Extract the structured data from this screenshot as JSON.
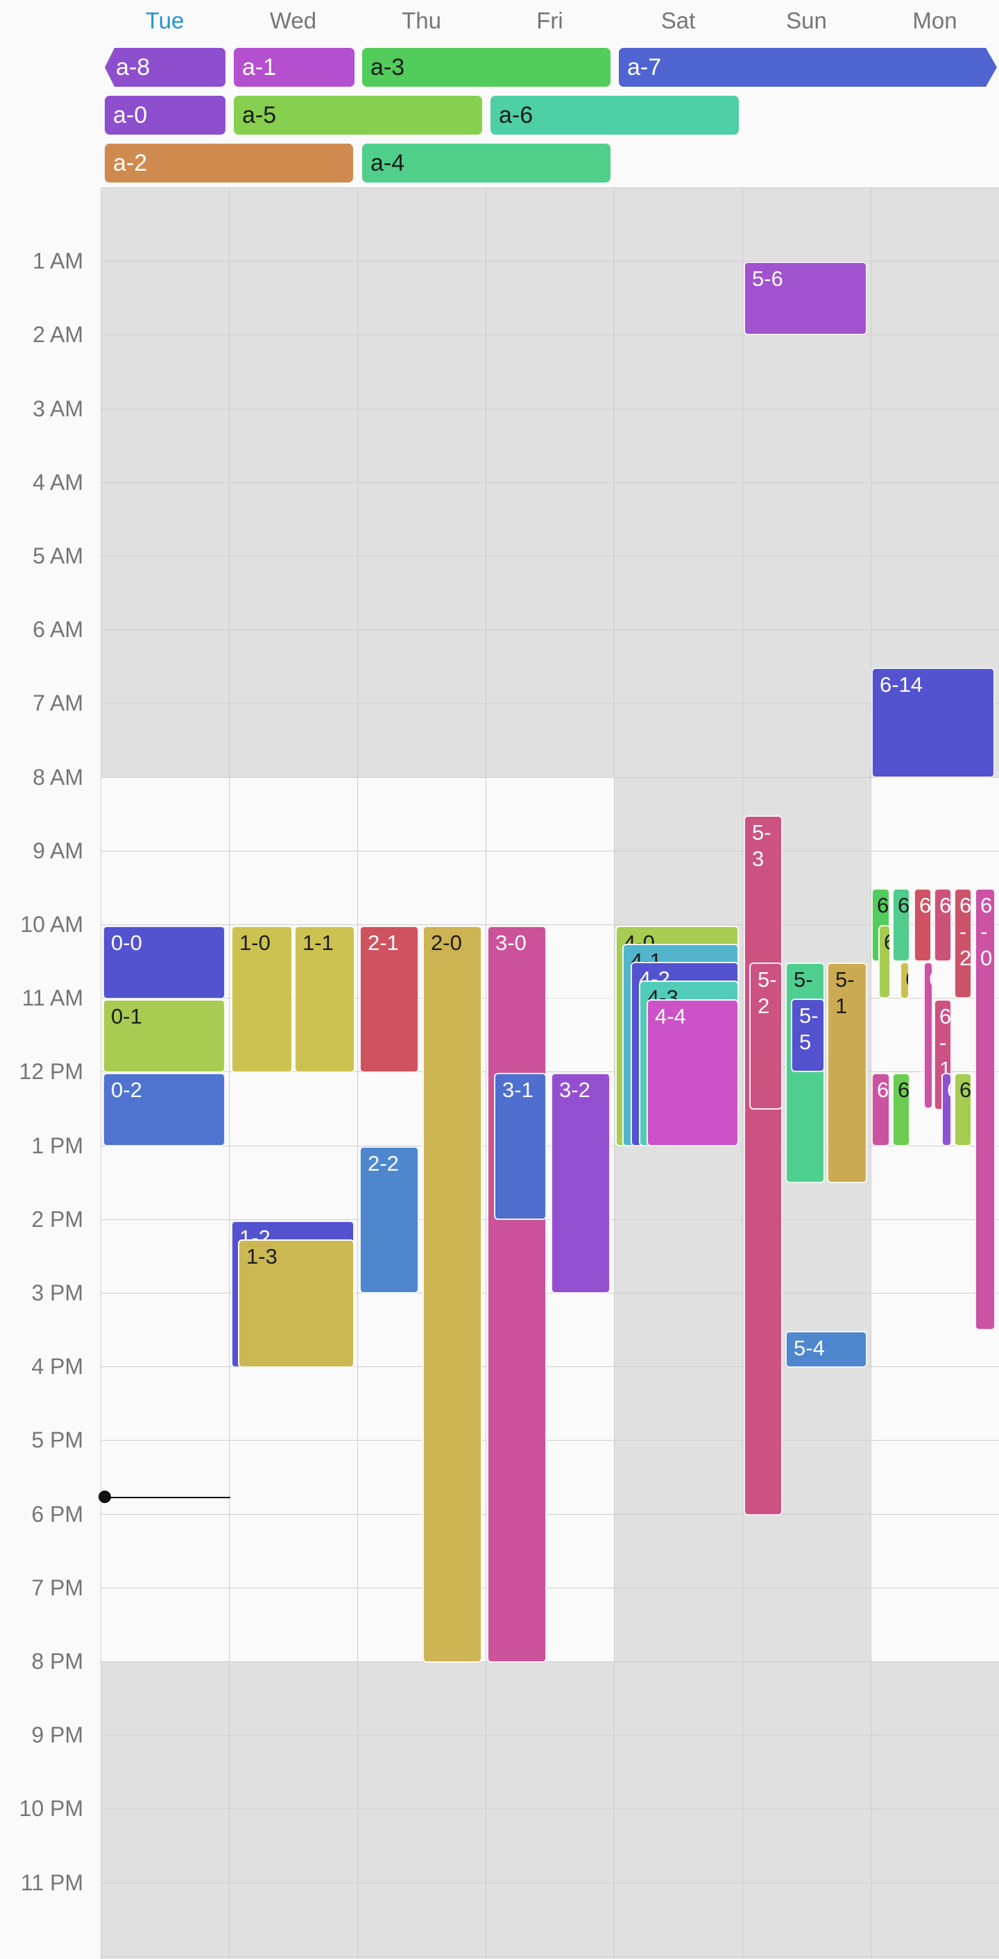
{
  "days": [
    {
      "label": "Tue",
      "today": true
    },
    {
      "label": "Wed",
      "today": false
    },
    {
      "label": "Thu",
      "today": false
    },
    {
      "label": "Fri",
      "today": false
    },
    {
      "label": "Sat",
      "today": false
    },
    {
      "label": "Sun",
      "today": false
    },
    {
      "label": "Mon",
      "today": false
    }
  ],
  "hours": [
    "1 AM",
    "2 AM",
    "3 AM",
    "4 AM",
    "5 AM",
    "6 AM",
    "7 AM",
    "8 AM",
    "9 AM",
    "10 AM",
    "11 AM",
    "12 PM",
    "1 PM",
    "2 PM",
    "3 PM",
    "4 PM",
    "5 PM",
    "6 PM",
    "7 PM",
    "8 PM",
    "9 PM",
    "10 PM",
    "11 PM"
  ],
  "all_day_events": [
    {
      "label": "a-8",
      "color": "#8e4fcf",
      "dark": false
    },
    {
      "label": "a-1",
      "color": "#b44fcf",
      "dark": false
    },
    {
      "label": "a-3",
      "color": "#52cc5a",
      "dark": true
    },
    {
      "label": "a-7",
      "color": "#4f64d0",
      "dark": false
    },
    {
      "label": "a-0",
      "color": "#8e4fcf",
      "dark": false
    },
    {
      "label": "a-5",
      "color": "#86cf4f",
      "dark": true
    },
    {
      "label": "a-6",
      "color": "#4fcfa6",
      "dark": true
    },
    {
      "label": "a-2",
      "color": "#cf8a4f",
      "dark": false
    },
    {
      "label": "a-4",
      "color": "#4fcf8a",
      "dark": true
    }
  ],
  "events": [
    {
      "label": "0-0",
      "color": "#5352cf",
      "dark": false
    },
    {
      "label": "0-1",
      "color": "#a8cc52",
      "dark": true
    },
    {
      "label": "0-2",
      "color": "#4f74cf",
      "dark": false
    },
    {
      "label": "1-0",
      "color": "#ccc252",
      "dark": true
    },
    {
      "label": "1-1",
      "color": "#ccc252",
      "dark": true
    },
    {
      "label": "1-2",
      "color": "#5352cf",
      "dark": false
    },
    {
      "label": "1-3",
      "color": "#ccb852",
      "dark": true
    },
    {
      "label": "2-1",
      "color": "#cf5260",
      "dark": false
    },
    {
      "label": "2-0",
      "color": "#ccb452",
      "dark": true
    },
    {
      "label": "2-2",
      "color": "#4f87cf",
      "dark": false
    },
    {
      "label": "3-0",
      "color": "#cc5299",
      "dark": false
    },
    {
      "label": "3-1",
      "color": "#4f6fcf",
      "dark": false
    },
    {
      "label": "3-2",
      "color": "#934fcf",
      "dark": false
    },
    {
      "label": "4-0",
      "color": "#a6cc52",
      "dark": true
    },
    {
      "label": "4-1",
      "color": "#52b5cc",
      "dark": true
    },
    {
      "label": "4-2",
      "color": "#5352cf",
      "dark": false
    },
    {
      "label": "4-3",
      "color": "#52ccb8",
      "dark": true
    },
    {
      "label": "4-4",
      "color": "#cc52c8",
      "dark": false
    },
    {
      "label": "5-6",
      "color": "#a052cf",
      "dark": false
    },
    {
      "label": "5-3",
      "color": "#cc5282",
      "dark": false
    },
    {
      "label": "5-2",
      "color": "#cc5282",
      "dark": false
    },
    {
      "label": "5-",
      "color": "#4fcf8f",
      "dark": true
    },
    {
      "label": "5-5",
      "color": "#5352cf",
      "dark": false
    },
    {
      "label": "5-1",
      "color": "#ccaa52",
      "dark": true
    },
    {
      "label": "5-4",
      "color": "#4f87cf",
      "dark": false
    },
    {
      "label": "6-14",
      "color": "#5352cf",
      "dark": false
    },
    {
      "label": "6",
      "color": "#52cc5c",
      "dark": true
    },
    {
      "label": "6",
      "color": "#52cc8c",
      "dark": true
    },
    {
      "label": "6",
      "color": "#a6cc52",
      "dark": true
    },
    {
      "label": "6",
      "color": "#cf5262",
      "dark": false
    },
    {
      "label": "6",
      "color": "#cc527a",
      "dark": false
    },
    {
      "label": "6-2",
      "color": "#cc526a",
      "dark": false
    },
    {
      "label": "6-0",
      "color": "#cc52a6",
      "dark": false
    },
    {
      "label": "6-1",
      "color": "#cc5282",
      "dark": false
    },
    {
      "label": "6",
      "color": "#cc52a0",
      "dark": false
    },
    {
      "label": "6",
      "color": "#6bcc52",
      "dark": true
    },
    {
      "label": "6",
      "color": "#ccc052",
      "dark": true
    },
    {
      "label": "6",
      "color": "#8c52cf",
      "dark": false
    },
    {
      "label": "6",
      "color": "#a6cc52",
      "dark": true
    },
    {
      "label": "6",
      "color": "#cc52a6",
      "dark": false
    }
  ]
}
